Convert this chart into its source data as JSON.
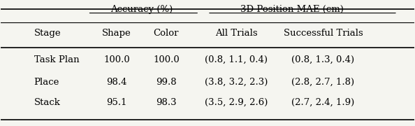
{
  "col_headers_row1": [
    "",
    "Accuracy (%)",
    "",
    "3D Position MAE (cm)",
    ""
  ],
  "col_headers_row2": [
    "Stage",
    "Shape",
    "Color",
    "All Trials",
    "Successful Trials"
  ],
  "rows": [
    [
      "Task Plan",
      "100.0",
      "100.0",
      "(0.8, 1.1, 0.4)",
      "(0.8, 1.3, 0.4)"
    ],
    [
      "Place",
      "98.4",
      "99.8",
      "(3.8, 3.2, 2.3)",
      "(2.8, 2.7, 1.8)"
    ],
    [
      "Stack",
      "95.1",
      "98.3",
      "(3.5, 2.9, 2.6)",
      "(2.7, 2.4, 1.9)"
    ]
  ],
  "accuracy_span": [
    1,
    2
  ],
  "mae_span": [
    3,
    4
  ],
  "background_color": "#f5f5f0",
  "font_family": "serif"
}
